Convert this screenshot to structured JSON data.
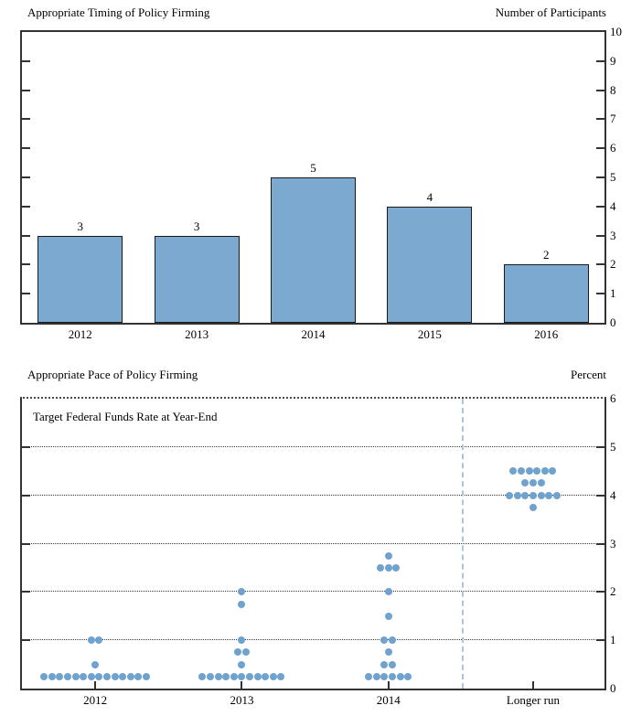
{
  "colors": {
    "bar_fill": "#7CA9CF",
    "bar_border": "#1A1A1A",
    "dot": "#6FA3CE",
    "separator": "#A9C6E0",
    "axis": "#333333",
    "grid": "#3A3A3A",
    "text": "#000000"
  },
  "chart_data": [
    {
      "type": "bar",
      "title": "Appropriate Timing of Policy Firming",
      "unit_label": "Number of Participants",
      "categories": [
        "2012",
        "2013",
        "2014",
        "2015",
        "2016"
      ],
      "values": [
        3,
        3,
        5,
        4,
        2
      ],
      "ylim": [
        0,
        10
      ],
      "yticks": [
        0,
        1,
        2,
        3,
        4,
        5,
        6,
        7,
        8,
        9,
        10
      ],
      "value_labels": [
        "3",
        "3",
        "5",
        "4",
        "2"
      ],
      "grid": false,
      "axis_label_side": "right"
    },
    {
      "type": "scatter",
      "title": "Appropriate Pace of Policy Firming",
      "unit_label": "Percent",
      "annotation": "Target Federal Funds Rate at Year-End",
      "categories": [
        "2012",
        "2013",
        "2014",
        "Longer run"
      ],
      "ylim": [
        0,
        6
      ],
      "yticks": [
        0,
        1,
        2,
        3,
        4,
        5,
        6
      ],
      "gridlines": [
        1,
        2,
        3,
        4,
        5
      ],
      "grid": true,
      "axis_label_side": "right",
      "separator_before_category": "Longer run",
      "separator_frac": 0.755,
      "series": [
        {
          "category": "2012",
          "points": [
            {
              "rate": 1.0,
              "count": 2
            },
            {
              "rate": 0.5,
              "count": 1
            },
            {
              "rate": 0.25,
              "count": 14
            }
          ]
        },
        {
          "category": "2013",
          "points": [
            {
              "rate": 2.0,
              "count": 1
            },
            {
              "rate": 1.75,
              "count": 1
            },
            {
              "rate": 1.0,
              "count": 1
            },
            {
              "rate": 0.75,
              "count": 2
            },
            {
              "rate": 0.5,
              "count": 1
            },
            {
              "rate": 0.25,
              "count": 11
            }
          ]
        },
        {
          "category": "2014",
          "points": [
            {
              "rate": 2.75,
              "count": 1
            },
            {
              "rate": 2.5,
              "count": 3
            },
            {
              "rate": 2.0,
              "count": 1
            },
            {
              "rate": 1.5,
              "count": 1
            },
            {
              "rate": 1.0,
              "count": 2
            },
            {
              "rate": 0.75,
              "count": 1
            },
            {
              "rate": 0.5,
              "count": 2
            },
            {
              "rate": 0.25,
              "count": 6
            }
          ]
        },
        {
          "category": "Longer run",
          "points": [
            {
              "rate": 4.5,
              "count": 6
            },
            {
              "rate": 4.25,
              "count": 3
            },
            {
              "rate": 4.0,
              "count": 7
            },
            {
              "rate": 3.75,
              "count": 1
            }
          ]
        }
      ]
    }
  ]
}
